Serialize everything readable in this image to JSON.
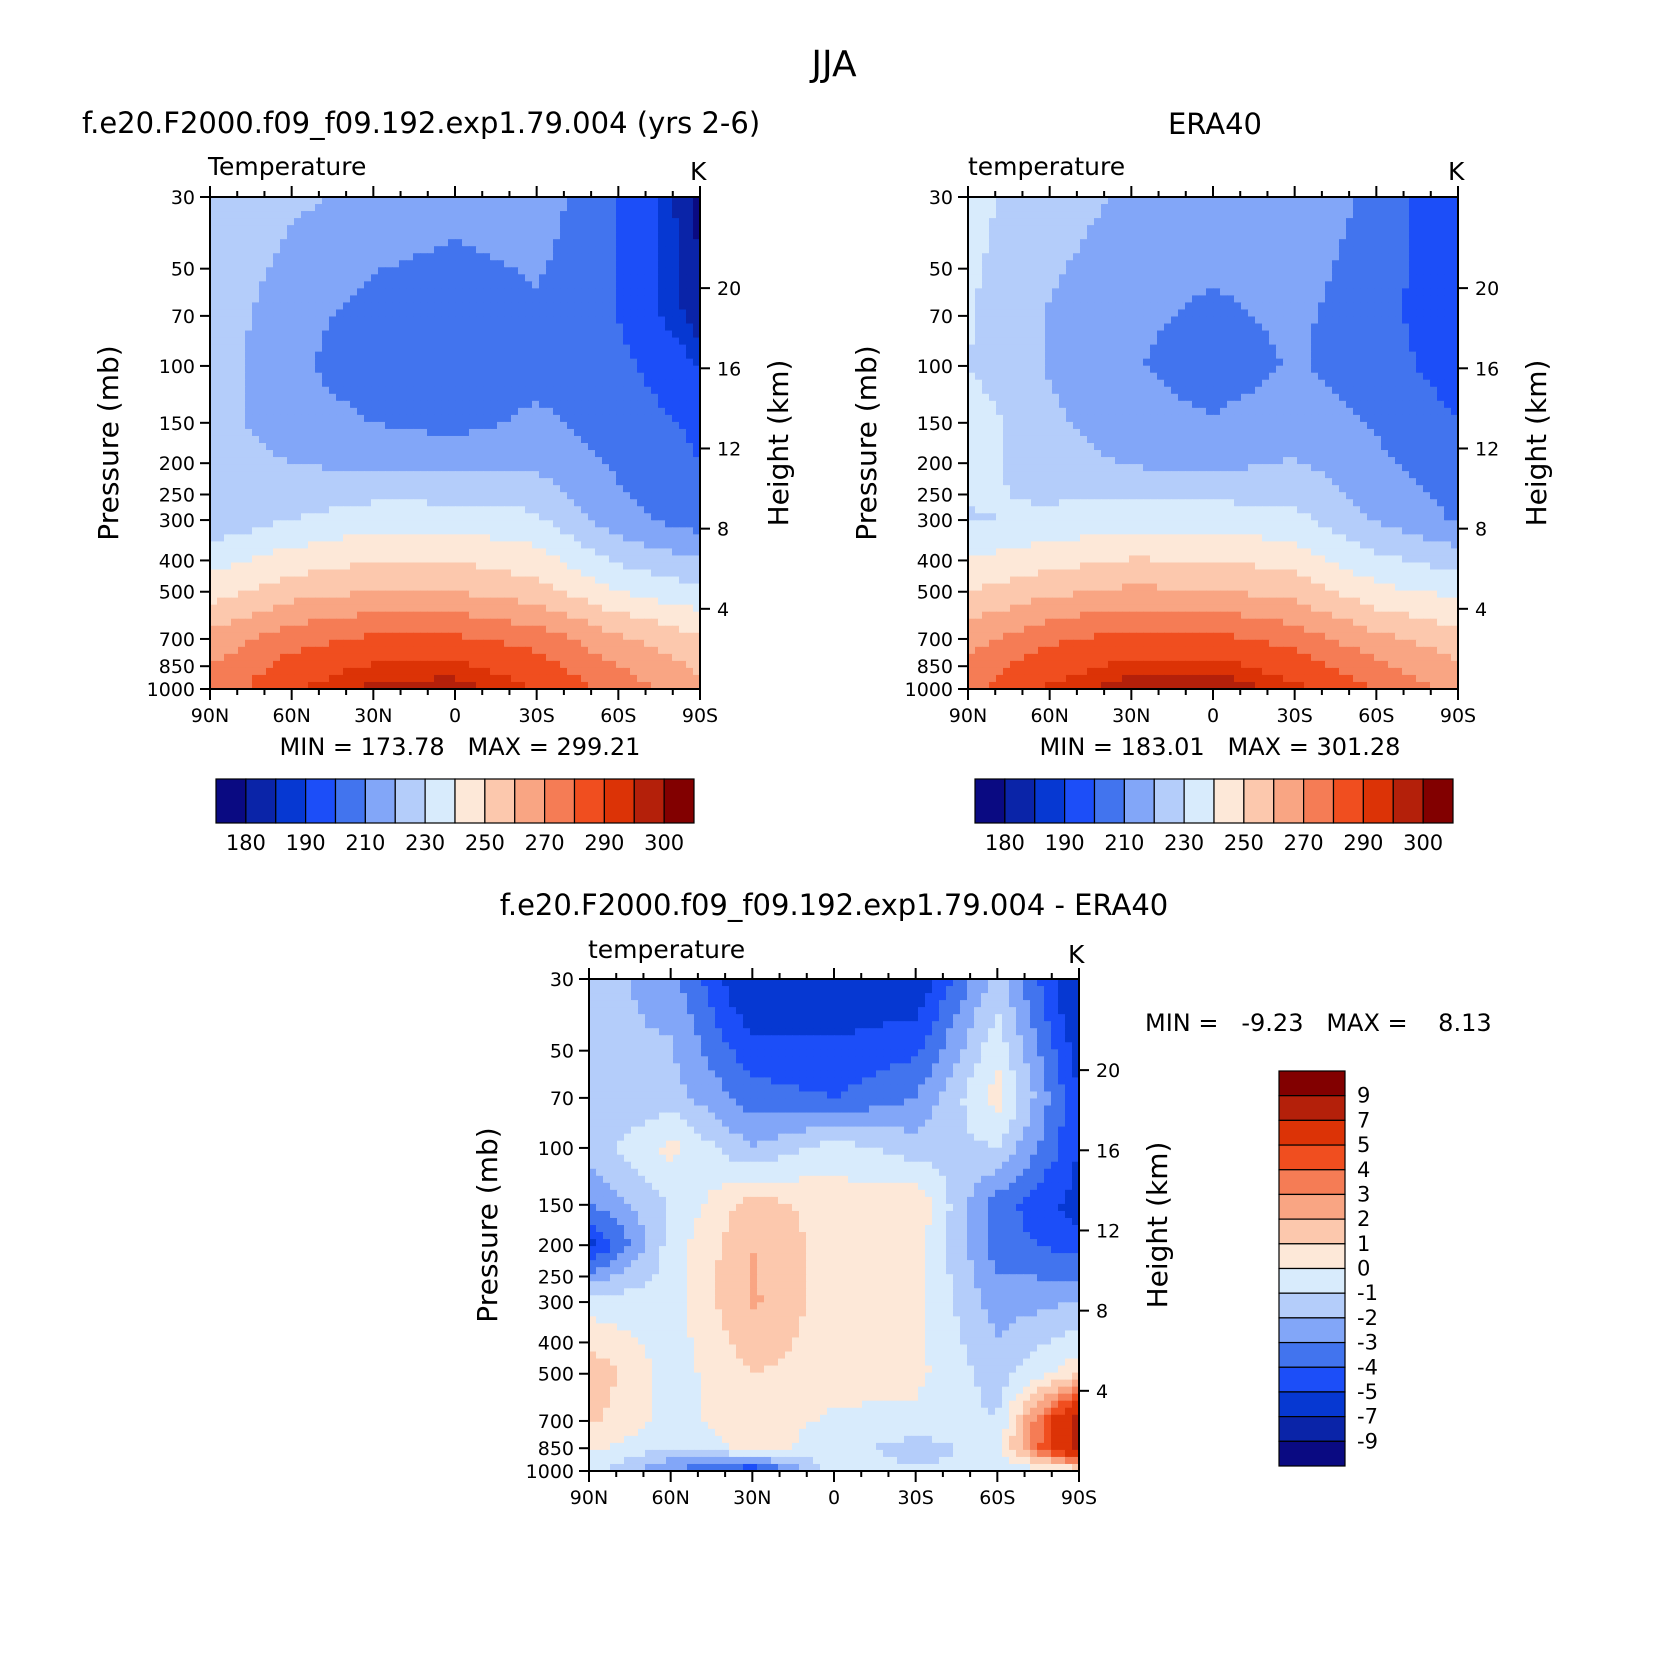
{
  "figure": {
    "title": "JJA"
  },
  "colors": {
    "model_obs_palette": [
      "#0a0a82",
      "#0a24a8",
      "#0638d2",
      "#1c4ef8",
      "#4274ee",
      "#82a6f8",
      "#b4cdfa",
      "#d8ebfc",
      "#fde8d8",
      "#fcc8ad",
      "#f9a583",
      "#f57c55",
      "#f04e1f",
      "#dc3306",
      "#b4200a",
      "#820000"
    ],
    "diff_palette": [
      "#0a0a82",
      "#0a24a8",
      "#0638d2",
      "#1c4ef8",
      "#4274ee",
      "#82a6f8",
      "#b4cdfa",
      "#d8ebfc",
      "#fde8d8",
      "#fcc8ad",
      "#f9a583",
      "#f57c55",
      "#f04e1f",
      "#dc3306",
      "#b4200a",
      "#820000"
    ]
  },
  "panels": [
    {
      "id": "model",
      "title": "f.e20.F2000.f09_f09.192.exp1.79.004 (yrs 2-6)",
      "left_label": "Temperature",
      "units": "K",
      "stats": "MIN = 173.78   MAX = 299.21"
    },
    {
      "id": "obs",
      "title": "ERA40",
      "left_label": "temperature",
      "units": "K",
      "stats": "MIN = 183.01   MAX = 301.28"
    },
    {
      "id": "diff",
      "title": "f.e20.F2000.f09_f09.192.exp1.79.004 - ERA40",
      "left_label": "temperature",
      "units": "K",
      "stats": "MIN =   -9.23   MAX =    8.13"
    }
  ],
  "chart_data": [
    {
      "type": "heatmap",
      "title": "f.e20.F2000.f09_f09.192.exp1.79.004 (yrs 2-6)",
      "subtitle": "Temperature",
      "units": "K",
      "xlabel": "",
      "ylabel": "Pressure (mb)",
      "y2label": "Height (km)",
      "xlim": [
        90,
        -90
      ],
      "x_ticklabels": [
        "90N",
        "60N",
        "30N",
        "0",
        "30S",
        "60S",
        "90S"
      ],
      "y_scale": "log",
      "ylim": [
        1000,
        30
      ],
      "y_ticks": [
        30,
        50,
        70,
        100,
        150,
        200,
        250,
        300,
        400,
        500,
        700,
        850,
        1000
      ],
      "y2_ticks": [
        4,
        8,
        12,
        16,
        20
      ],
      "contour_levels": [
        180,
        185,
        190,
        200,
        210,
        220,
        230,
        240,
        250,
        260,
        270,
        280,
        290,
        295,
        300
      ],
      "colorbar_labels": [
        "180",
        "190",
        "210",
        "230",
        "250",
        "270",
        "290",
        "300"
      ],
      "min": 173.78,
      "max": 299.21,
      "lat": [
        90,
        60,
        30,
        0,
        -30,
        -60,
        -90
      ],
      "plev": [
        30,
        70,
        100,
        150,
        200,
        300,
        500,
        700,
        850,
        1000
      ],
      "values": [
        [
          228,
          222,
          217,
          214,
          216,
          200,
          178
        ],
        [
          226,
          214,
          206,
          203,
          208,
          200,
          181
        ],
        [
          225,
          212,
          204,
          201,
          207,
          203,
          190
        ],
        [
          224,
          215,
          210,
          207,
          212,
          206,
          198
        ],
        [
          224,
          220,
          217,
          216,
          218,
          208,
          200
        ],
        [
          223,
          230,
          236,
          236,
          232,
          214,
          205
        ],
        [
          246,
          256,
          260,
          260,
          254,
          240,
          232
        ],
        [
          263,
          276,
          282,
          282,
          276,
          262,
          252
        ],
        [
          270,
          284,
          291,
          292,
          284,
          270,
          258
        ],
        [
          273,
          289,
          297,
          298,
          290,
          276,
          262
        ]
      ]
    },
    {
      "type": "heatmap",
      "title": "ERA40",
      "subtitle": "temperature",
      "units": "K",
      "xlabel": "",
      "ylabel": "Pressure (mb)",
      "y2label": "Height (km)",
      "xlim": [
        90,
        -90
      ],
      "x_ticklabels": [
        "90N",
        "60N",
        "30N",
        "0",
        "30S",
        "60S",
        "90S"
      ],
      "y_scale": "log",
      "ylim": [
        1000,
        30
      ],
      "y_ticks": [
        30,
        50,
        70,
        100,
        150,
        200,
        250,
        300,
        400,
        500,
        700,
        850,
        1000
      ],
      "y2_ticks": [
        4,
        8,
        12,
        16,
        20
      ],
      "contour_levels": [
        180,
        185,
        190,
        200,
        210,
        220,
        230,
        240,
        250,
        260,
        270,
        280,
        290,
        295,
        300
      ],
      "colorbar_labels": [
        "180",
        "190",
        "210",
        "230",
        "250",
        "270",
        "290",
        "300"
      ],
      "min": 183.01,
      "max": 301.28,
      "lat": [
        90,
        60,
        30,
        0,
        -30,
        -60,
        -90
      ],
      "plev": [
        30,
        70,
        100,
        150,
        200,
        300,
        500,
        700,
        850,
        1000
      ],
      "values": [
        [
          233,
          225,
          218,
          216,
          218,
          207,
          190
        ],
        [
          231,
          219,
          212,
          208,
          212,
          204,
          192
        ],
        [
          230,
          219,
          211,
          205,
          211,
          205,
          195
        ],
        [
          236,
          222,
          214,
          211,
          215,
          209,
          200
        ],
        [
          234,
          225,
          219,
          217,
          221,
          212,
          203
        ],
        [
          229,
          232,
          236,
          236,
          233,
          219,
          209
        ],
        [
          250,
          258,
          262,
          261,
          256,
          243,
          238
        ],
        [
          266,
          278,
          284,
          283,
          276,
          263,
          254
        ],
        [
          274,
          286,
          292,
          293,
          286,
          272,
          262
        ],
        [
          277,
          291,
          299,
          300,
          292,
          280,
          266
        ]
      ]
    },
    {
      "type": "heatmap",
      "title": "f.e20.F2000.f09_f09.192.exp1.79.004 - ERA40",
      "subtitle": "temperature",
      "units": "K",
      "xlabel": "",
      "ylabel": "Pressure (mb)",
      "y2label": "Height (km)",
      "xlim": [
        90,
        -90
      ],
      "x_ticklabels": [
        "90N",
        "60N",
        "30N",
        "0",
        "30S",
        "60S",
        "90S"
      ],
      "y_scale": "log",
      "ylim": [
        1000,
        30
      ],
      "y_ticks": [
        30,
        50,
        70,
        100,
        150,
        200,
        250,
        300,
        400,
        500,
        700,
        850,
        1000
      ],
      "y2_ticks": [
        4,
        8,
        12,
        16,
        20
      ],
      "contour_levels": [
        -9,
        -7,
        -5,
        -4,
        -3,
        -2,
        -1,
        0,
        1,
        2,
        3,
        4,
        5,
        7,
        9
      ],
      "colorbar_labels": [
        "9",
        "7",
        "5",
        "4",
        "3",
        "2",
        "1",
        "0",
        "-1",
        "-2",
        "-3",
        "-4",
        "-5",
        "-7",
        "-9"
      ],
      "min": -9.23,
      "max": 8.13,
      "lat": [
        90,
        60,
        30,
        0,
        -30,
        -60,
        -90
      ],
      "plev": [
        30,
        70,
        100,
        150,
        200,
        300,
        500,
        700,
        850,
        1000
      ],
      "values": [
        [
          -1.5,
          -2.5,
          -6.5,
          -6.0,
          -6.0,
          -1.5,
          -6.5
        ],
        [
          -2.0,
          -1.5,
          -3.5,
          -4.0,
          -3.0,
          0.5,
          -5.0
        ],
        [
          -1.5,
          0.3,
          -2.0,
          -0.5,
          -1.5,
          -1.0,
          -5.0
        ],
        [
          -3.0,
          -1.0,
          1.5,
          0.5,
          0.8,
          -3.5,
          -5.5
        ],
        [
          -5.5,
          -0.5,
          2.0,
          0.5,
          0.5,
          -3.5,
          -4.5
        ],
        [
          -0.5,
          -0.5,
          2.2,
          0.4,
          0.3,
          -2.5,
          -2.0
        ],
        [
          1.8,
          -0.5,
          1.0,
          0.5,
          0.3,
          -1.5,
          0.8
        ],
        [
          1.2,
          -0.3,
          0.6,
          -0.2,
          -0.3,
          -1.0,
          8.0
        ],
        [
          0.2,
          -1.0,
          0.4,
          -0.5,
          -1.5,
          -0.4,
          8.0
        ],
        [
          -0.5,
          -3.0,
          -5.0,
          -0.5,
          -0.8,
          -1.0,
          0.0
        ]
      ]
    }
  ]
}
